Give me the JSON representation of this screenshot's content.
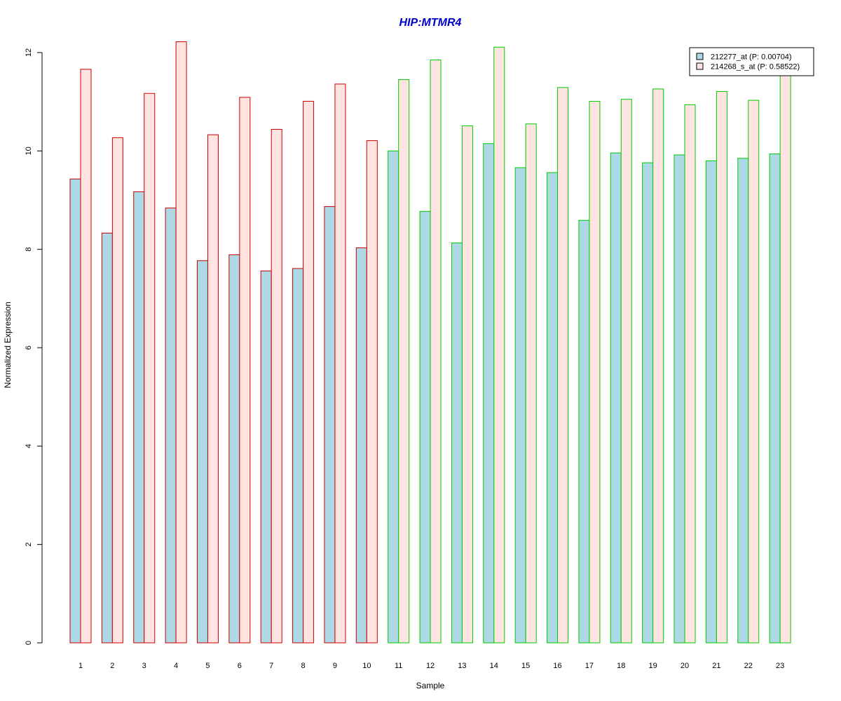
{
  "chart_data": {
    "type": "bar",
    "title": "HIP:MTMR4",
    "xlabel": "Sample",
    "ylabel": "Normalized Expression",
    "ylim": [
      0,
      12
    ],
    "yticks": [
      "0",
      "2",
      "4",
      "6",
      "8",
      "10",
      "12"
    ],
    "categories": [
      "1",
      "2",
      "3",
      "4",
      "5",
      "6",
      "7",
      "8",
      "9",
      "10",
      "11",
      "12",
      "13",
      "14",
      "15",
      "16",
      "17",
      "18",
      "19",
      "20",
      "21",
      "22",
      "23"
    ],
    "series": [
      {
        "name": "212277_at (P: 0.00704)",
        "fill": "#add8e6",
        "values": [
          9.43,
          8.33,
          9.17,
          8.84,
          7.77,
          7.89,
          7.56,
          7.61,
          8.87,
          8.03,
          10.0,
          8.77,
          8.13,
          10.15,
          9.66,
          9.56,
          8.59,
          9.96,
          9.76,
          9.92,
          9.8,
          9.85,
          9.94
        ]
      },
      {
        "name": "214268_s_at (P: 0.58522)",
        "fill": "#ffe4e1",
        "values": [
          11.66,
          10.27,
          11.17,
          12.22,
          10.33,
          11.09,
          10.44,
          11.01,
          11.36,
          10.21,
          11.45,
          11.85,
          10.51,
          12.11,
          10.55,
          11.29,
          11.01,
          11.05,
          11.26,
          10.94,
          11.21,
          11.03,
          11.55
        ]
      }
    ],
    "group_border_colors": [
      "#cc0000",
      "#cc0000",
      "#cc0000",
      "#cc0000",
      "#cc0000",
      "#cc0000",
      "#cc0000",
      "#cc0000",
      "#cc0000",
      "#cc0000",
      "#00cc00",
      "#00cc00",
      "#00cc00",
      "#00cc00",
      "#00cc00",
      "#00cc00",
      "#00cc00",
      "#00cc00",
      "#00cc00",
      "#00cc00",
      "#00cc00",
      "#00cc00",
      "#00cc00"
    ],
    "title_color": "#0000cc",
    "grid": false,
    "legend_position": "top-right"
  }
}
